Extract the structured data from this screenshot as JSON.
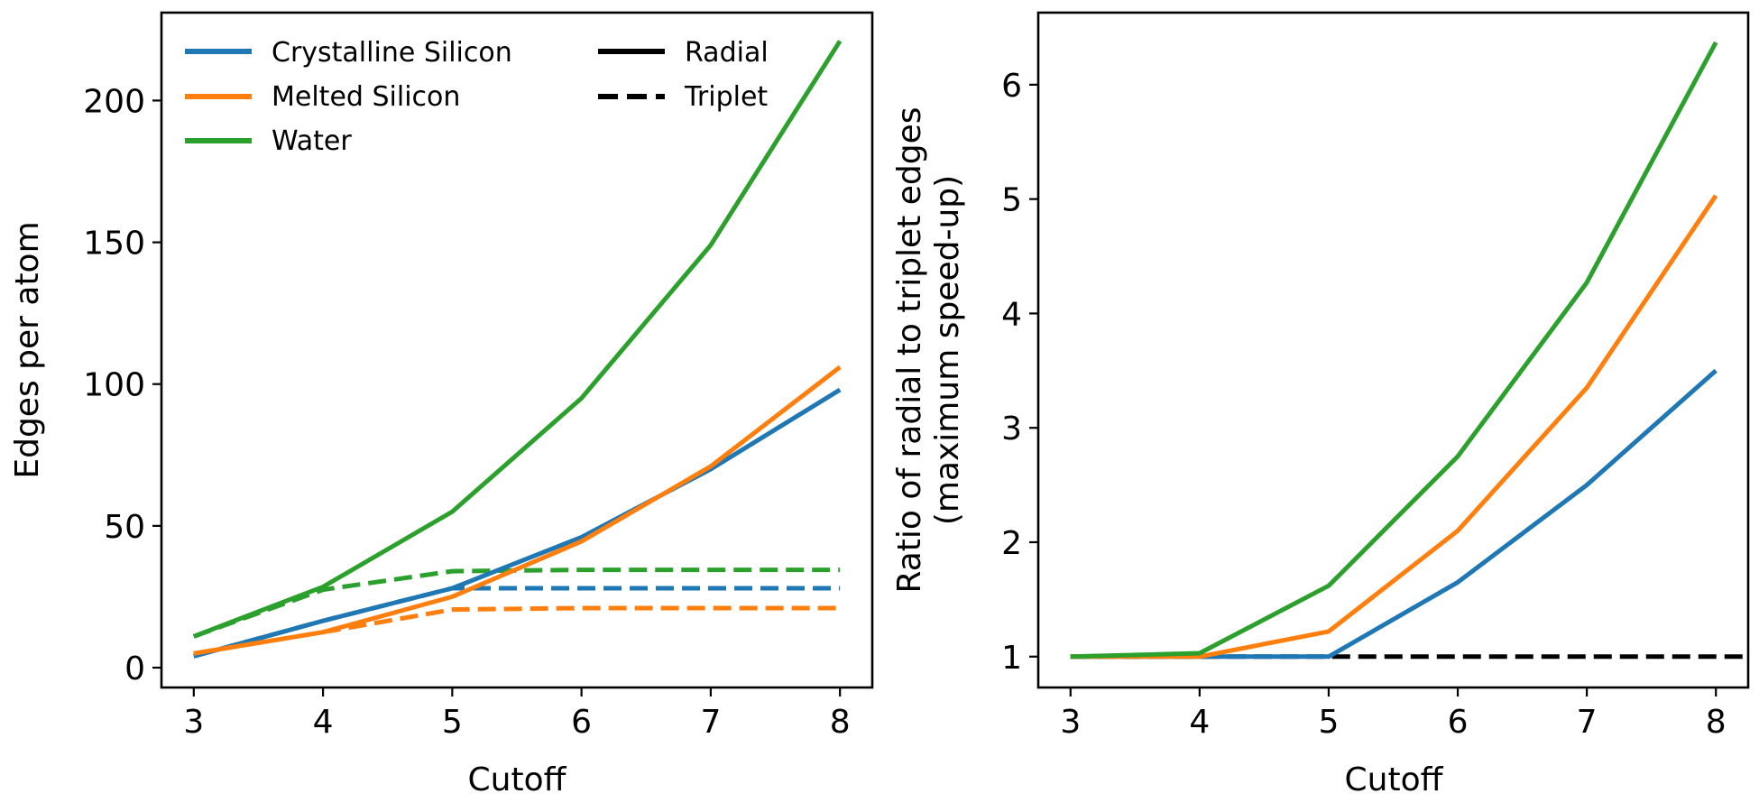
{
  "colors": {
    "crystalline": "#1f77b4",
    "melted": "#ff7f0e",
    "water": "#2ca02c",
    "reference": "#000000"
  },
  "chart_data": [
    {
      "type": "line",
      "xlabel": "Cutoff",
      "ylabel": "Edges per atom",
      "x": [
        3,
        4,
        5,
        6,
        7,
        8
      ],
      "xlim": [
        2.75,
        8.25
      ],
      "ylim": [
        -7,
        231
      ],
      "xticks": [
        "3",
        "4",
        "5",
        "6",
        "7",
        "8"
      ],
      "yticks": [
        "0",
        "50",
        "100",
        "150",
        "200"
      ],
      "legend": {
        "location": "upper-left",
        "series_entries": [
          "Crystalline Silicon",
          "Melted Silicon",
          "Water"
        ],
        "style_entries": [
          "Radial",
          "Triplet"
        ]
      },
      "series": [
        {
          "name": "Crystalline Silicon",
          "style": "Radial",
          "color_key": "crystalline",
          "dashed": false,
          "values": [
            4,
            16.5,
            28,
            46,
            70,
            98
          ]
        },
        {
          "name": "Melted Silicon",
          "style": "Radial",
          "color_key": "melted",
          "dashed": false,
          "values": [
            5,
            12.5,
            25,
            44.5,
            71,
            106
          ]
        },
        {
          "name": "Water",
          "style": "Radial",
          "color_key": "water",
          "dashed": false,
          "values": [
            11,
            28.5,
            55,
            95,
            149,
            221
          ]
        },
        {
          "name": "Crystalline Silicon",
          "style": "Triplet",
          "color_key": "crystalline",
          "dashed": true,
          "values": [
            4,
            16.5,
            28,
            28,
            28,
            28
          ]
        },
        {
          "name": "Melted Silicon",
          "style": "Triplet",
          "color_key": "melted",
          "dashed": true,
          "values": [
            5,
            12.5,
            20.5,
            21,
            21,
            21
          ]
        },
        {
          "name": "Water",
          "style": "Triplet",
          "color_key": "water",
          "dashed": true,
          "values": [
            11,
            27.5,
            34,
            34.5,
            34.5,
            34.5
          ]
        }
      ]
    },
    {
      "type": "line",
      "xlabel": "Cutoff",
      "ylabel": "Ratio of radial to triplet edges",
      "ylabel2": "(maximum speed-up)",
      "x": [
        3,
        4,
        5,
        6,
        7,
        8
      ],
      "xlim": [
        2.75,
        8.25
      ],
      "ylim": [
        0.73,
        6.63
      ],
      "xticks": [
        "3",
        "4",
        "5",
        "6",
        "7",
        "8"
      ],
      "yticks": [
        "1",
        "2",
        "3",
        "4",
        "5",
        "6"
      ],
      "series": [
        {
          "name": "Crystalline Silicon",
          "color_key": "crystalline",
          "dashed": false,
          "values": [
            1.0,
            1.0,
            1.0,
            1.65,
            2.5,
            3.5
          ]
        },
        {
          "name": "Melted Silicon",
          "color_key": "melted",
          "dashed": false,
          "values": [
            1.0,
            1.0,
            1.22,
            2.1,
            3.35,
            5.03
          ]
        },
        {
          "name": "Water",
          "color_key": "water",
          "dashed": false,
          "values": [
            1.0,
            1.03,
            1.62,
            2.75,
            4.27,
            6.37
          ]
        }
      ],
      "reference_line": {
        "y": 1,
        "x_range": [
          3,
          8.25
        ],
        "color_key": "reference",
        "dashed": true
      }
    }
  ]
}
